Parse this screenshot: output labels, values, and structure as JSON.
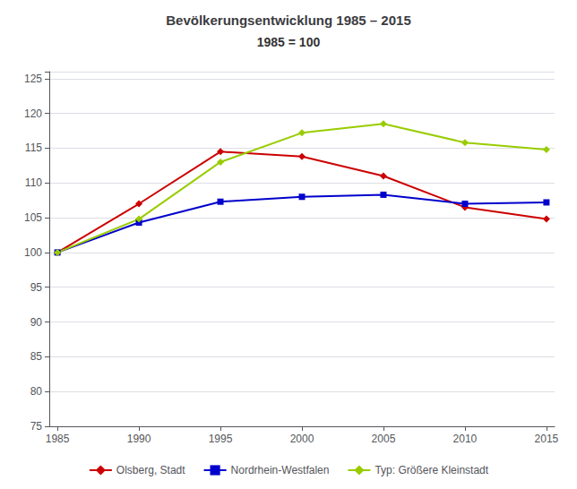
{
  "chart_data": {
    "type": "line",
    "title": "Bevölkerungsentwicklung 1985 – 2015",
    "subtitle": "1985 = 100",
    "x": [
      1985,
      1990,
      1995,
      2000,
      2005,
      2010,
      2015
    ],
    "series": [
      {
        "name": "Olsberg, Stadt",
        "color": "#cc0000",
        "marker": "diamond",
        "values": [
          100,
          107,
          114.5,
          113.8,
          111,
          106.5,
          104.8
        ]
      },
      {
        "name": "Nordrhein-Westfalen",
        "color": "#0000cc",
        "marker": "square",
        "values": [
          100,
          104.3,
          107.3,
          108.0,
          108.3,
          107.0,
          107.2
        ]
      },
      {
        "name": "Typ: Größere Kleinstadt",
        "color": "#99cc00",
        "marker": "diamond",
        "values": [
          100,
          104.8,
          113.0,
          117.2,
          118.5,
          115.8,
          114.8
        ]
      }
    ],
    "xlim": [
      1984.5,
      2015.5
    ],
    "xticks": [
      1985,
      1990,
      1995,
      2000,
      2005,
      2010,
      2015
    ],
    "ylim": [
      75,
      126
    ],
    "yticks": [
      75,
      80,
      85,
      90,
      95,
      100,
      105,
      110,
      115,
      120,
      125
    ],
    "grid": true,
    "legend": "bottom"
  }
}
